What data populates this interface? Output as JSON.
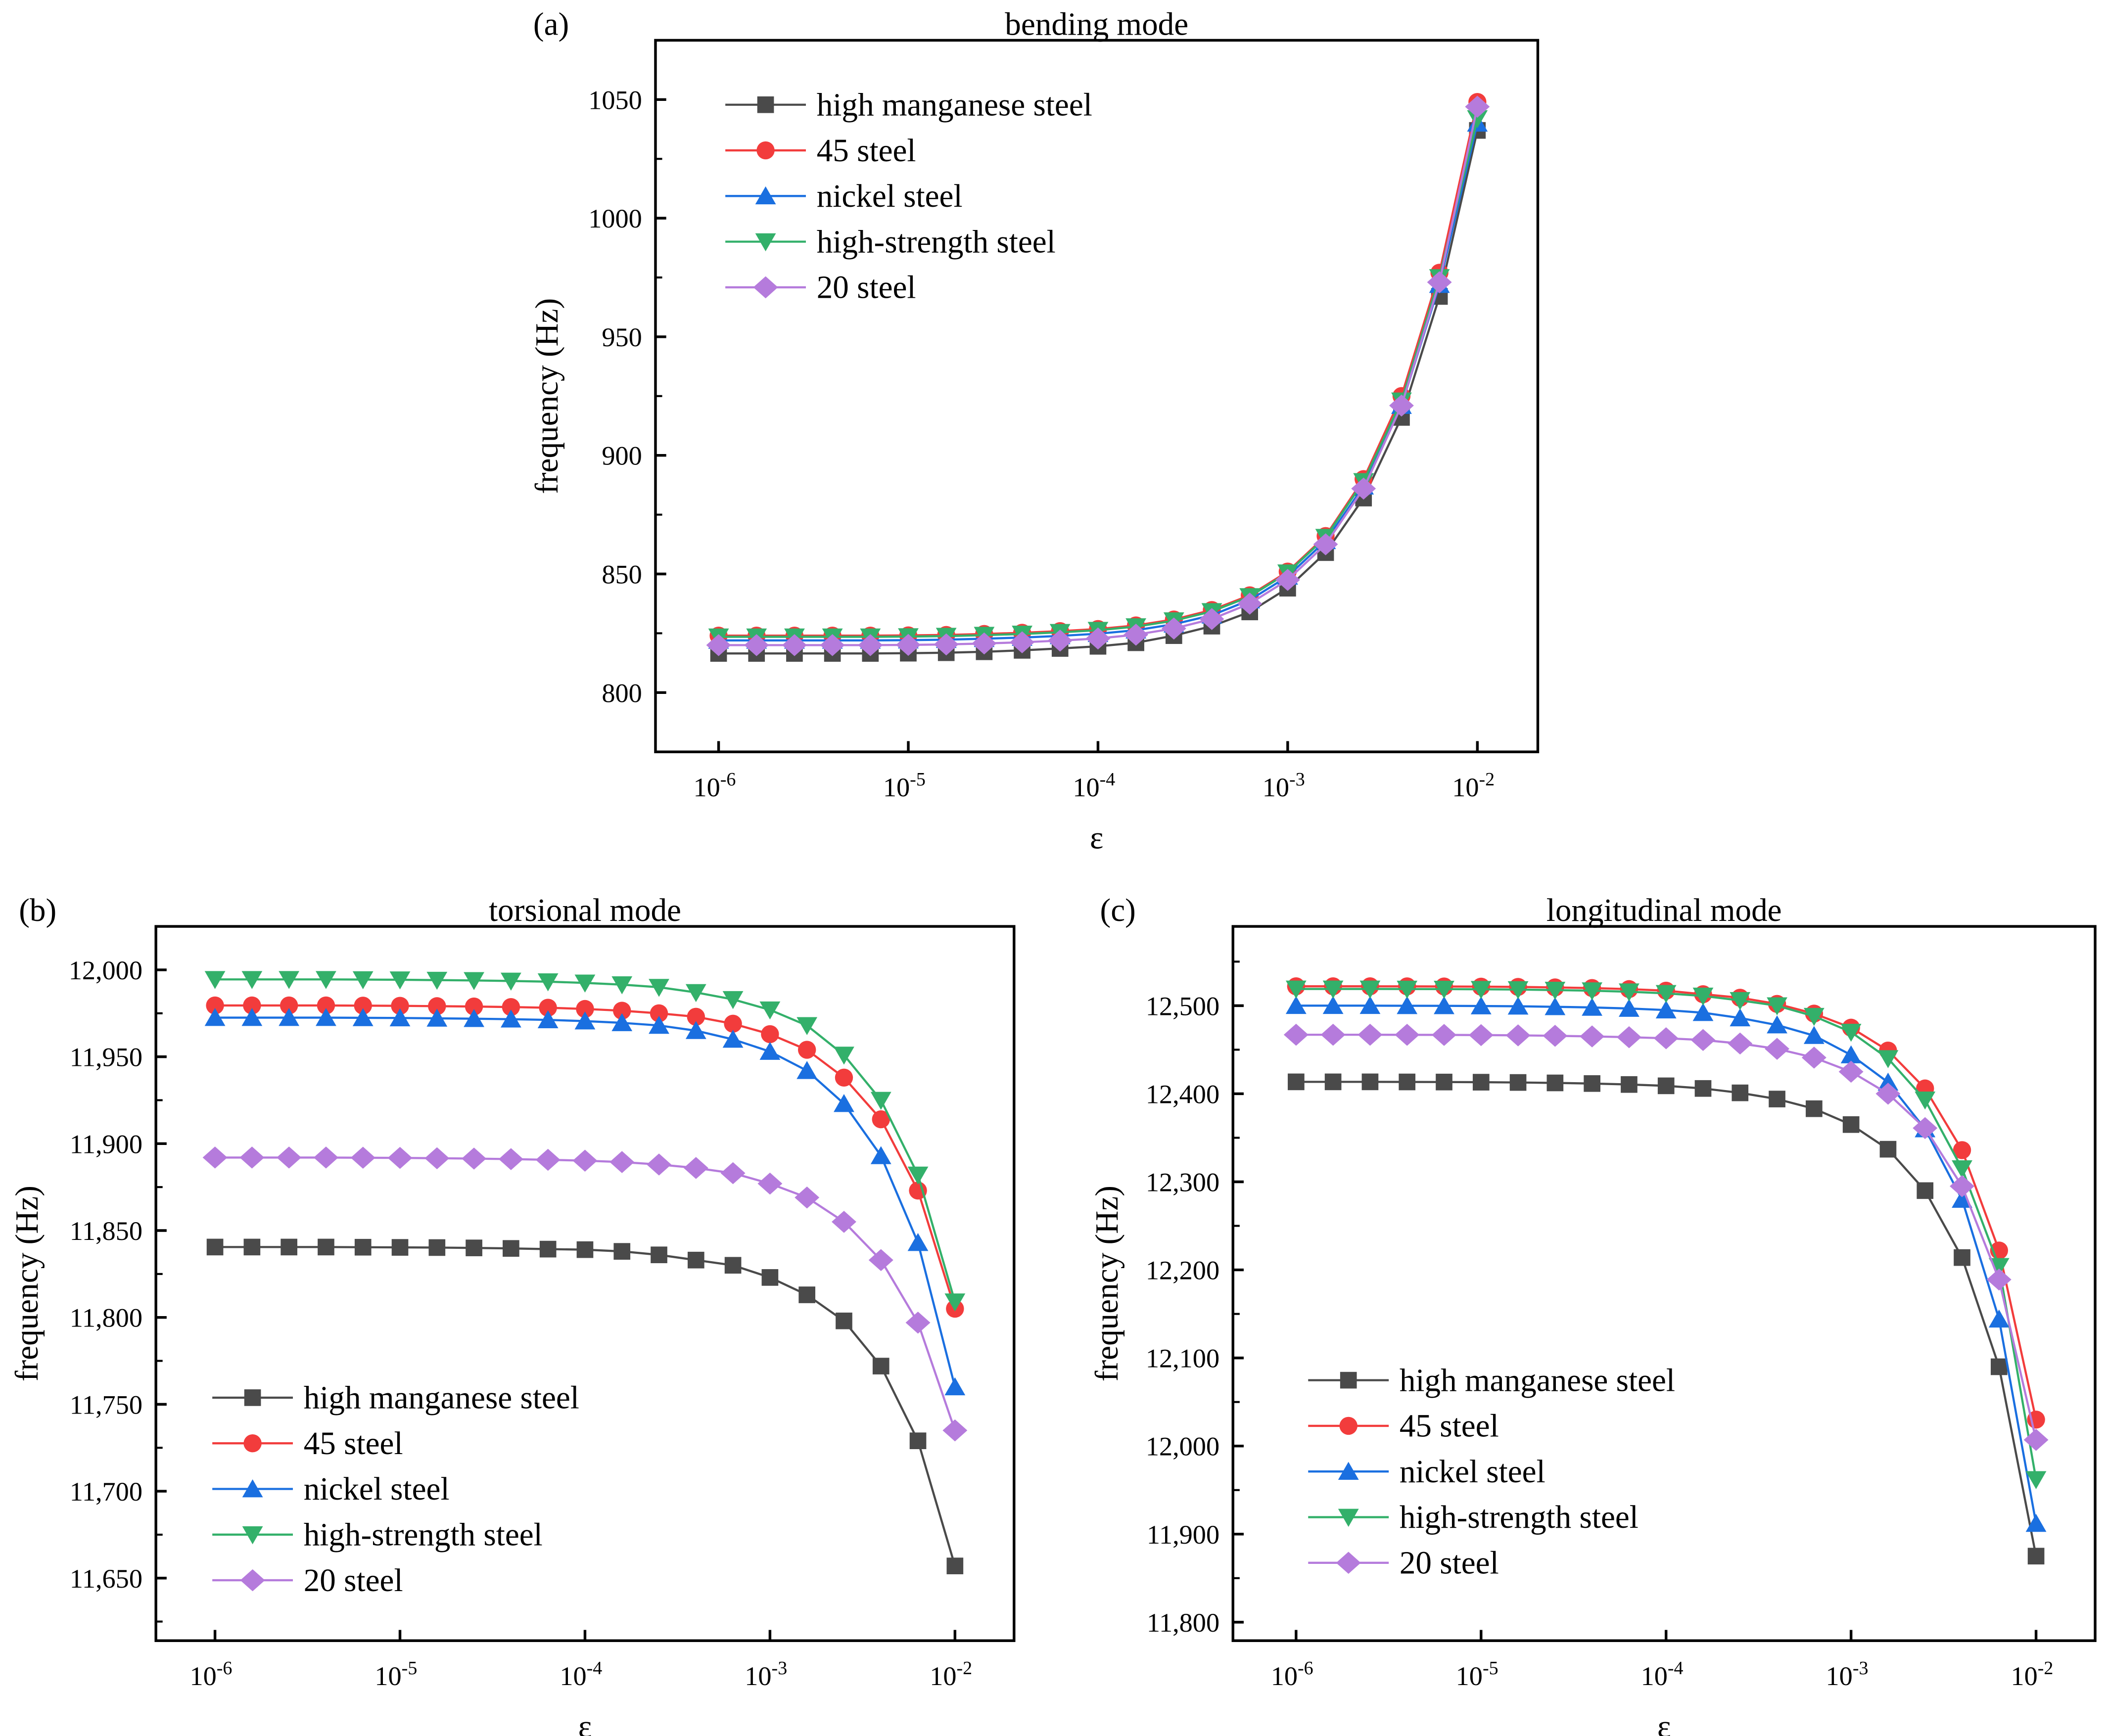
{
  "legend_labels": [
    "high manganese steel",
    "45 steel",
    "nickel steel",
    "high-strength steel",
    "20 steel"
  ],
  "series_colors": [
    "#4a4a4a",
    "#f23c3c",
    "#1a6fe0",
    "#33b06a",
    "#b57bdc"
  ],
  "series_markers": [
    "square",
    "circle",
    "triangle-up",
    "triangle-down",
    "diamond"
  ],
  "chart_data": [
    {
      "panel": "(a)",
      "type": "line",
      "title": "bending mode",
      "xlabel": "ε",
      "ylabel": "frequency (Hz)",
      "xscale": "log",
      "x_exponents": [
        -6,
        -5.8,
        -5.6,
        -5.4,
        -5.2,
        -5,
        -4.8,
        -4.6,
        -4.4,
        -4.2,
        -4,
        -3.8,
        -3.6,
        -3.4,
        -3.2,
        -3,
        -2.8,
        -2.6,
        -2.4,
        -2.2,
        -2
      ],
      "xticks": [
        "10^-6",
        "10^-5",
        "10^-4",
        "10^-3",
        "10^-2"
      ],
      "ylim": [
        775,
        1075
      ],
      "yticks": [
        800,
        850,
        900,
        950,
        1000,
        1050
      ],
      "ytick_labels": [
        "800",
        "850",
        "900",
        "950",
        "1000",
        "1050"
      ],
      "legend_position": "top-left",
      "series": [
        {
          "name": "high manganese steel",
          "values": [
            816.5,
            816.5,
            816.5,
            816.5,
            816.5,
            816.6,
            816.8,
            817.2,
            817.8,
            818.6,
            819.5,
            821,
            824,
            828,
            834,
            844,
            859,
            882,
            916,
            967,
            1037
          ]
        },
        {
          "name": "45 steel",
          "values": [
            824,
            824,
            824,
            824,
            824,
            824.1,
            824.3,
            824.7,
            825.2,
            825.9,
            826.8,
            828.3,
            830.8,
            834.8,
            841,
            851,
            866,
            890,
            925,
            977,
            1049
          ]
        },
        {
          "name": "nickel steel",
          "values": [
            822,
            822,
            822,
            822,
            822,
            822.1,
            822.3,
            822.7,
            823.2,
            823.9,
            824.8,
            826.3,
            828.8,
            832.6,
            839,
            849,
            864,
            887,
            921,
            972,
            1040
          ]
        },
        {
          "name": "high-strength steel",
          "values": [
            823.5,
            823.5,
            823.5,
            823.5,
            823.5,
            823.6,
            823.8,
            824.2,
            824.7,
            825.4,
            826.3,
            827.8,
            830.3,
            834.2,
            840.5,
            850.5,
            865.5,
            889,
            923,
            975,
            1042
          ]
        },
        {
          "name": "20 steel",
          "values": [
            820,
            820,
            820,
            820,
            820,
            820.1,
            820.3,
            820.7,
            821.2,
            821.9,
            822.8,
            824.4,
            827,
            831,
            837.5,
            847.5,
            862.5,
            886,
            921,
            973,
            1047
          ]
        }
      ]
    },
    {
      "panel": "(b)",
      "type": "line",
      "title": "torsional mode",
      "xlabel": "ε",
      "ylabel": "frequency (Hz)",
      "xscale": "log",
      "x_exponents": [
        -6,
        -5.8,
        -5.6,
        -5.4,
        -5.2,
        -5,
        -4.8,
        -4.6,
        -4.4,
        -4.2,
        -4,
        -3.8,
        -3.6,
        -3.4,
        -3.2,
        -3,
        -2.8,
        -2.6,
        -2.4,
        -2.2,
        -2
      ],
      "xticks": [
        "10^-6",
        "10^-5",
        "10^-4",
        "10^-3",
        "10^-2"
      ],
      "ylim": [
        11614,
        12025
      ],
      "yticks": [
        11650,
        11700,
        11750,
        11800,
        11850,
        11900,
        11950,
        12000
      ],
      "ytick_labels": [
        "11,650",
        "11,700",
        "11,750",
        "11,800",
        "11,850",
        "11,900",
        "11,950",
        "12,000"
      ],
      "legend_position": "bottom-left",
      "series": [
        {
          "name": "high manganese steel",
          "values": [
            11840.5,
            11840.5,
            11840.5,
            11840.5,
            11840.4,
            11840.3,
            11840.2,
            11840,
            11839.7,
            11839.3,
            11839,
            11838,
            11836,
            11833,
            11830,
            11823,
            11813,
            11798,
            11772,
            11729,
            11657
          ]
        },
        {
          "name": "45 steel",
          "values": [
            11979.5,
            11979.5,
            11979.5,
            11979.5,
            11979.4,
            11979.3,
            11979.1,
            11978.9,
            11978.6,
            11978.2,
            11977.5,
            11976.5,
            11975,
            11973,
            11969,
            11963,
            11954,
            11938,
            11914,
            11873,
            11805
          ]
        },
        {
          "name": "nickel steel",
          "values": [
            11972.5,
            11972.5,
            11972.5,
            11972.5,
            11972.4,
            11972.3,
            11972.1,
            11971.9,
            11971.6,
            11971.2,
            11970.5,
            11969.5,
            11968,
            11965,
            11960,
            11953,
            11942,
            11923,
            11893,
            11843,
            11760
          ]
        },
        {
          "name": "high-strength steel",
          "values": [
            11994.5,
            11994.5,
            11994.5,
            11994.5,
            11994.4,
            11994.3,
            11994.1,
            11993.9,
            11993.6,
            11993.2,
            11992.5,
            11991.5,
            11990,
            11987,
            11983,
            11977,
            11968,
            11951,
            11925,
            11882,
            11809
          ]
        },
        {
          "name": "20 steel",
          "values": [
            11892,
            11892,
            11892,
            11892,
            11891.9,
            11891.8,
            11891.6,
            11891.4,
            11891.1,
            11890.7,
            11890.2,
            11889.4,
            11888,
            11886,
            11883,
            11877,
            11869,
            11855,
            11833,
            11797,
            11735
          ]
        }
      ]
    },
    {
      "panel": "(c)",
      "type": "line",
      "title": "longitudinal mode",
      "xlabel": "ε",
      "ylabel": "frequency (Hz)",
      "xscale": "log",
      "x_exponents": [
        -6,
        -5.8,
        -5.6,
        -5.4,
        -5.2,
        -5,
        -4.8,
        -4.6,
        -4.4,
        -4.2,
        -4,
        -3.8,
        -3.6,
        -3.4,
        -3.2,
        -3,
        -2.8,
        -2.6,
        -2.4,
        -2.2,
        -2
      ],
      "xticks": [
        "10^-6",
        "10^-5",
        "10^-4",
        "10^-3",
        "10^-2"
      ],
      "ylim": [
        11779,
        12590
      ],
      "yticks": [
        11800,
        11900,
        12000,
        12100,
        12200,
        12300,
        12400,
        12500
      ],
      "ytick_labels": [
        "11,800",
        "11,900",
        "12,000",
        "12,100",
        "12,200",
        "12,300",
        "12,400",
        "12,500"
      ],
      "legend_position": "bottom-left",
      "series": [
        {
          "name": "high manganese steel",
          "values": [
            12413.5,
            12413.5,
            12413.5,
            12413.4,
            12413.3,
            12413.1,
            12412.8,
            12412.3,
            12411.6,
            12410.5,
            12409,
            12406,
            12401,
            12394,
            12383,
            12365,
            12337,
            12290,
            12214,
            12090,
            11875
          ]
        },
        {
          "name": "45 steel",
          "values": [
            12522,
            12522,
            12522,
            12521.9,
            12521.8,
            12521.6,
            12521.3,
            12520.7,
            12520,
            12518.8,
            12517,
            12513,
            12509,
            12502,
            12491,
            12475,
            12449,
            12406,
            12336,
            12222,
            12030
          ]
        },
        {
          "name": "nickel steel",
          "values": [
            12500,
            12500,
            12500,
            12499.9,
            12499.8,
            12499.6,
            12499.3,
            12498.7,
            12498,
            12496.8,
            12495,
            12492,
            12486,
            12478,
            12466,
            12444,
            12413,
            12360,
            12280,
            12144,
            11912
          ]
        },
        {
          "name": "high-strength steel",
          "values": [
            12519,
            12519,
            12519,
            12518.9,
            12518.8,
            12518.6,
            12518.3,
            12517.7,
            12517,
            12515.8,
            12514,
            12511,
            12506,
            12500,
            12488,
            12470,
            12440,
            12393,
            12315,
            12204,
            11962
          ]
        },
        {
          "name": "20 steel",
          "values": [
            12467,
            12467,
            12467,
            12466.9,
            12466.8,
            12466.6,
            12466.3,
            12465.8,
            12465.1,
            12464.2,
            12463,
            12461,
            12457,
            12451,
            12441,
            12425,
            12400,
            12361,
            12295,
            12189,
            12007
          ]
        }
      ]
    }
  ]
}
